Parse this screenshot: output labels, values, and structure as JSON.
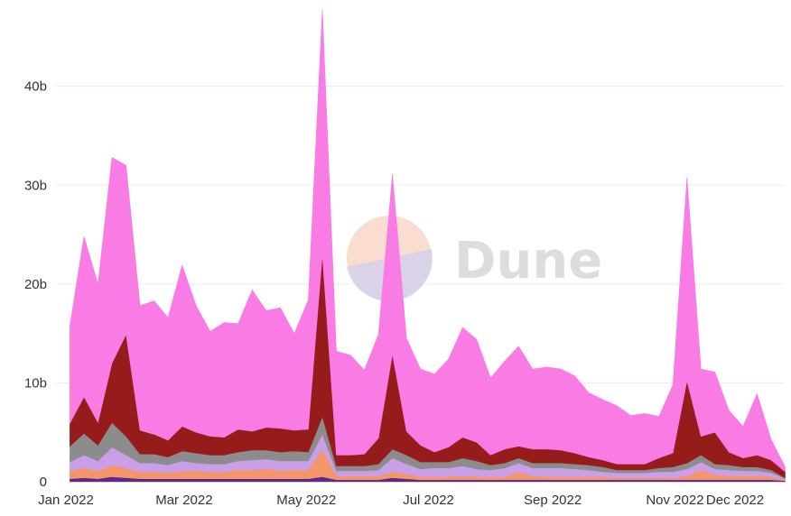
{
  "chart_data": {
    "type": "area",
    "stacked": true,
    "title": "",
    "xlabel": "",
    "ylabel": "",
    "ylim": [
      0,
      48
    ],
    "y_unit": "b",
    "y_ticks": [
      {
        "value": 0,
        "label": "0"
      },
      {
        "value": 10,
        "label": "10b"
      },
      {
        "value": 20,
        "label": "20b"
      },
      {
        "value": 30,
        "label": "30b"
      },
      {
        "value": 40,
        "label": "40b"
      }
    ],
    "x_ticks": [
      {
        "date": "2022-01-01",
        "label": "Jan 2022"
      },
      {
        "date": "2022-03-01",
        "label": "Mar 2022"
      },
      {
        "date": "2022-05-01",
        "label": "May 2022"
      },
      {
        "date": "2022-07-01",
        "label": "Jul 2022"
      },
      {
        "date": "2022-09-01",
        "label": "Sep 2022"
      },
      {
        "date": "2022-11-01",
        "label": "Nov 2022"
      },
      {
        "date": "2022-12-01",
        "label": "Dec 2022"
      }
    ],
    "grid": true,
    "legend": "none",
    "x": [
      "2022-01-03",
      "2022-01-10",
      "2022-01-17",
      "2022-01-24",
      "2022-01-31",
      "2022-02-07",
      "2022-02-14",
      "2022-02-21",
      "2022-02-28",
      "2022-03-07",
      "2022-03-14",
      "2022-03-21",
      "2022-03-28",
      "2022-04-04",
      "2022-04-11",
      "2022-04-18",
      "2022-04-25",
      "2022-05-02",
      "2022-05-09",
      "2022-05-16",
      "2022-05-23",
      "2022-05-30",
      "2022-06-06",
      "2022-06-13",
      "2022-06-20",
      "2022-06-27",
      "2022-07-04",
      "2022-07-11",
      "2022-07-18",
      "2022-07-25",
      "2022-08-01",
      "2022-08-08",
      "2022-08-15",
      "2022-08-22",
      "2022-08-29",
      "2022-09-05",
      "2022-09-12",
      "2022-09-19",
      "2022-09-26",
      "2022-10-03",
      "2022-10-10",
      "2022-10-17",
      "2022-10-24",
      "2022-10-31",
      "2022-11-07",
      "2022-11-14",
      "2022-11-21",
      "2022-11-28",
      "2022-12-05",
      "2022-12-12",
      "2022-12-19",
      "2022-12-26"
    ],
    "series": [
      {
        "color": "#5b2a82",
        "values": [
          0.3,
          0.4,
          0.3,
          0.5,
          0.4,
          0.3,
          0.3,
          0.3,
          0.3,
          0.3,
          0.3,
          0.3,
          0.3,
          0.3,
          0.3,
          0.3,
          0.3,
          0.3,
          0.5,
          0.2,
          0.2,
          0.2,
          0.2,
          0.4,
          0.3,
          0.2,
          0.2,
          0.2,
          0.2,
          0.2,
          0.2,
          0.2,
          0.2,
          0.2,
          0.2,
          0.2,
          0.2,
          0.2,
          0.2,
          0.2,
          0.2,
          0.2,
          0.2,
          0.2,
          0.2,
          0.2,
          0.2,
          0.2,
          0.2,
          0.2,
          0.2,
          0.1
        ]
      },
      {
        "color": "#f4956a",
        "values": [
          0.8,
          1.0,
          0.8,
          1.2,
          1.0,
          0.7,
          0.7,
          0.6,
          0.8,
          0.8,
          0.7,
          0.7,
          0.9,
          0.9,
          1.0,
          0.8,
          0.9,
          0.9,
          2.8,
          0.4,
          0.4,
          0.4,
          0.4,
          0.6,
          0.5,
          0.3,
          0.3,
          0.3,
          0.4,
          0.3,
          0.3,
          0.3,
          0.8,
          0.4,
          0.3,
          0.3,
          0.3,
          0.3,
          0.3,
          0.2,
          0.2,
          0.2,
          0.2,
          0.2,
          0.4,
          1.0,
          0.5,
          0.4,
          0.4,
          0.4,
          0.3,
          0.1
        ]
      },
      {
        "color": "#c9a0e8",
        "values": [
          0.9,
          1.3,
          1.0,
          1.8,
          1.3,
          0.9,
          0.9,
          0.8,
          1.0,
          0.8,
          0.8,
          0.8,
          0.9,
          1.0,
          1.0,
          1.0,
          0.9,
          0.9,
          1.5,
          0.5,
          0.5,
          0.5,
          0.6,
          1.4,
          1.0,
          0.8,
          0.9,
          0.9,
          1.0,
          0.8,
          0.7,
          0.9,
          0.9,
          0.8,
          0.9,
          0.9,
          0.8,
          0.7,
          0.5,
          0.5,
          0.5,
          0.5,
          0.6,
          0.6,
          0.7,
          0.8,
          0.6,
          0.6,
          0.5,
          0.5,
          0.4,
          0.1
        ]
      },
      {
        "color": "#8c8c8c",
        "values": [
          1.6,
          2.2,
          1.6,
          2.5,
          1.9,
          0.9,
          0.9,
          0.8,
          1.0,
          1.0,
          0.9,
          0.9,
          0.9,
          1.0,
          0.9,
          0.9,
          1.0,
          0.9,
          1.8,
          0.5,
          0.5,
          0.5,
          0.6,
          0.9,
          0.9,
          0.7,
          0.6,
          0.6,
          0.8,
          0.8,
          0.5,
          0.5,
          0.5,
          0.5,
          0.5,
          0.5,
          0.5,
          0.5,
          0.5,
          0.3,
          0.3,
          0.3,
          0.4,
          0.5,
          0.6,
          0.7,
          0.5,
          0.5,
          0.4,
          0.4,
          0.3,
          0.1
        ]
      },
      {
        "color": "#961c1c",
        "values": [
          2.3,
          3.7,
          2.3,
          6.0,
          10.3,
          2.4,
          2.0,
          1.7,
          2.5,
          2.1,
          1.9,
          1.8,
          2.3,
          1.9,
          2.3,
          2.4,
          2.1,
          2.3,
          16.4,
          1.1,
          1.1,
          1.2,
          2.6,
          9.6,
          2.4,
          1.7,
          1.0,
          1.5,
          2.1,
          1.9,
          1.0,
          1.4,
          1.2,
          1.4,
          1.4,
          1.3,
          1.1,
          0.8,
          0.7,
          0.6,
          0.6,
          0.6,
          1.0,
          1.4,
          8.3,
          1.9,
          3.2,
          1.3,
          0.9,
          1.2,
          1.0,
          0.6
        ]
      },
      {
        "color": "#f87ce4",
        "values": [
          9.9,
          16.2,
          14.0,
          20.8,
          17.1,
          12.6,
          13.5,
          12.4,
          16.3,
          12.8,
          10.6,
          11.6,
          10.7,
          14.3,
          11.8,
          12.2,
          9.8,
          13.1,
          24.8,
          10.5,
          10.1,
          8.5,
          10.5,
          18.2,
          9.4,
          7.7,
          7.9,
          8.9,
          11.1,
          10.4,
          7.8,
          8.9,
          10.1,
          8.1,
          8.3,
          8.2,
          7.8,
          6.5,
          6.1,
          5.9,
          4.9,
          5.1,
          4.2,
          6.9,
          20.6,
          6.8,
          6.1,
          4.2,
          3.2,
          6.2,
          2.1,
          0.5
        ]
      }
    ]
  }
}
